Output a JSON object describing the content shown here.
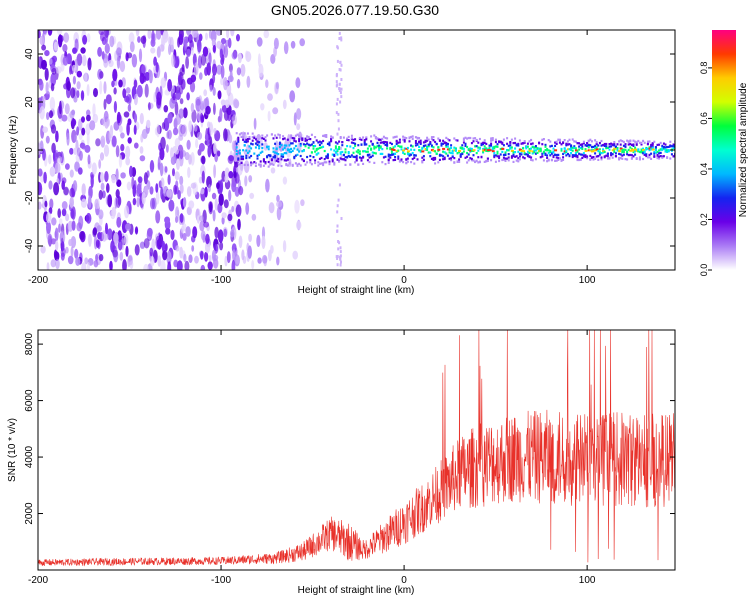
{
  "title": "GN05.2026.077.19.50.G30",
  "chart_data": [
    {
      "type": "heatmap",
      "xlabel": "Height of straight line (km)",
      "ylabel": "Frequency (Hz)",
      "xlim": [
        -200,
        148
      ],
      "ylim": [
        -50,
        50
      ],
      "xticks": [
        -200,
        -100,
        0,
        100
      ],
      "yticks": [
        -40,
        -20,
        0,
        20,
        40
      ],
      "colorbar": {
        "label": "Normalized spectral amplitude",
        "range": [
          0,
          0.95
        ],
        "ticks": [
          "0.0",
          "0.2",
          "0.4",
          "0.6",
          "0.8"
        ],
        "stops": [
          "#ffffff",
          "#ab7cf5",
          "#6a00e8",
          "#1424f0",
          "#00b8ff",
          "#00ffd0",
          "#00ff3c",
          "#d2ff00",
          "#ffcc00",
          "#ff3a00",
          "#ff0080"
        ]
      },
      "regions": [
        {
          "x_from": -200,
          "x_to": -88,
          "content": "broadband scatter, no line",
          "density": 0.55
        },
        {
          "x_from": -88,
          "x_to": -55,
          "content": "sparse scatter",
          "density": 0.18
        },
        {
          "x_from": -92,
          "x_to": 148,
          "content": "carrier line near 0 Hz",
          "center_hz": 0,
          "halfwidth_hz": 4
        }
      ]
    },
    {
      "type": "line",
      "xlabel": "Height of straight line (km)",
      "ylabel": "SNR (10 * v/v)",
      "xlim": [
        -200,
        148
      ],
      "ylim": [
        0,
        8500
      ],
      "xticks": [
        -200,
        -100,
        0,
        100
      ],
      "yticks": [
        2000,
        4000,
        6000,
        8000
      ],
      "color": "#e8312a",
      "envelope": {
        "x": [
          -200,
          -150,
          -100,
          -70,
          -55,
          -40,
          -30,
          -22,
          -10,
          0,
          10,
          20,
          30,
          40,
          60,
          80,
          100,
          120,
          148
        ],
        "mean": [
          260,
          300,
          320,
          420,
          650,
          1300,
          1000,
          700,
          1200,
          1700,
          2200,
          2800,
          3400,
          3700,
          4000,
          4000,
          3900,
          3900,
          3900
        ],
        "spread": [
          120,
          130,
          140,
          200,
          350,
          600,
          700,
          350,
          600,
          800,
          900,
          1100,
          1300,
          1500,
          1600,
          1700,
          1700,
          1700,
          1700
        ]
      }
    }
  ]
}
